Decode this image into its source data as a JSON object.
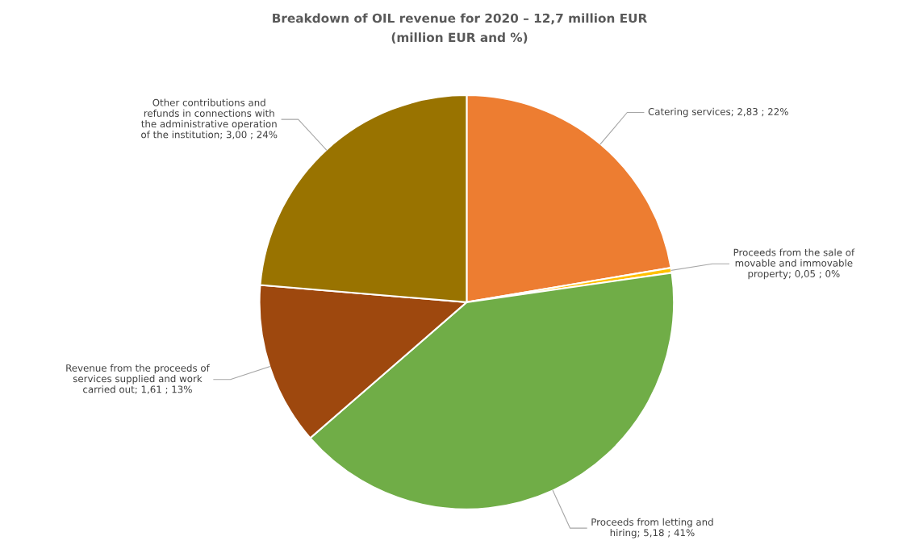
{
  "chart_data": {
    "type": "pie",
    "title": "Breakdown of OIL revenue for 2020 – 12,7 million EUR",
    "subtitle": "(million EUR and %)",
    "categories": [
      "Catering services",
      "Proceeds from the sale of movable and immovable property",
      "Proceeds from letting and hiring",
      "Revenue from the proceeds of services supplied and work carried out",
      "Other contributions and refunds in connections with the administrative operation of the institution"
    ],
    "values": [
      2.83,
      0.05,
      5.18,
      1.61,
      3.0
    ],
    "value_labels": [
      "2,83 ; 22%",
      "0,05 ; 0%",
      "5,18 ; 41%",
      "1,61 ; 13%",
      "3,00 ; 24%"
    ],
    "colors": [
      "#ed7d31",
      "#ffc000",
      "#70ad47",
      "#9e480e",
      "#997300"
    ]
  }
}
